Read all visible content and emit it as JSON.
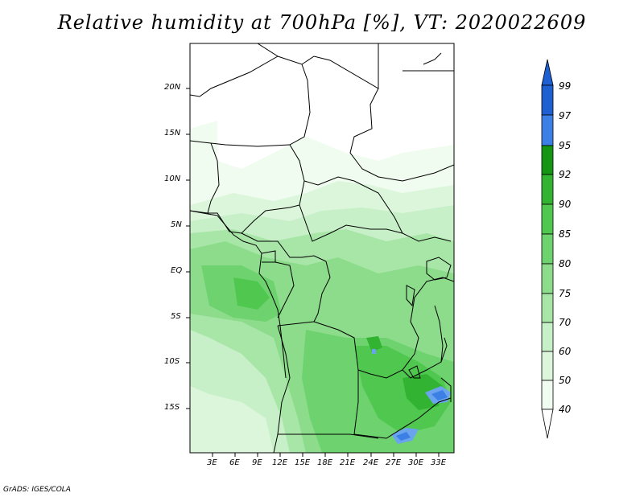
{
  "title": "Relative humidity at 700hPa [%], VT: 2020022609",
  "credit": "GrADS: IGES/COLA",
  "map": {
    "lat_labels": [
      "20N",
      "15N",
      "10N",
      "5N",
      "EQ",
      "5S",
      "10S",
      "15S"
    ],
    "lon_labels": [
      "3E",
      "6E",
      "9E",
      "12E",
      "15E",
      "18E",
      "21E",
      "24E",
      "27E",
      "30E",
      "33E"
    ]
  },
  "colorbar": {
    "levels": [
      "99",
      "97",
      "95",
      "92",
      "90",
      "85",
      "80",
      "75",
      "70",
      "60",
      "50",
      "40"
    ],
    "colors": {
      "c40": "#f0fcf0",
      "c50": "#dcf6dc",
      "c60": "#c8f0c8",
      "c70": "#a8e6a8",
      "c75": "#8cdc8c",
      "c80": "#6ed26e",
      "c85": "#50c850",
      "c90": "#32b432",
      "c92": "#149614",
      "c95": "#6aa4ee",
      "c97": "#3c80e6",
      "c99": "#1e5fd2"
    }
  }
}
